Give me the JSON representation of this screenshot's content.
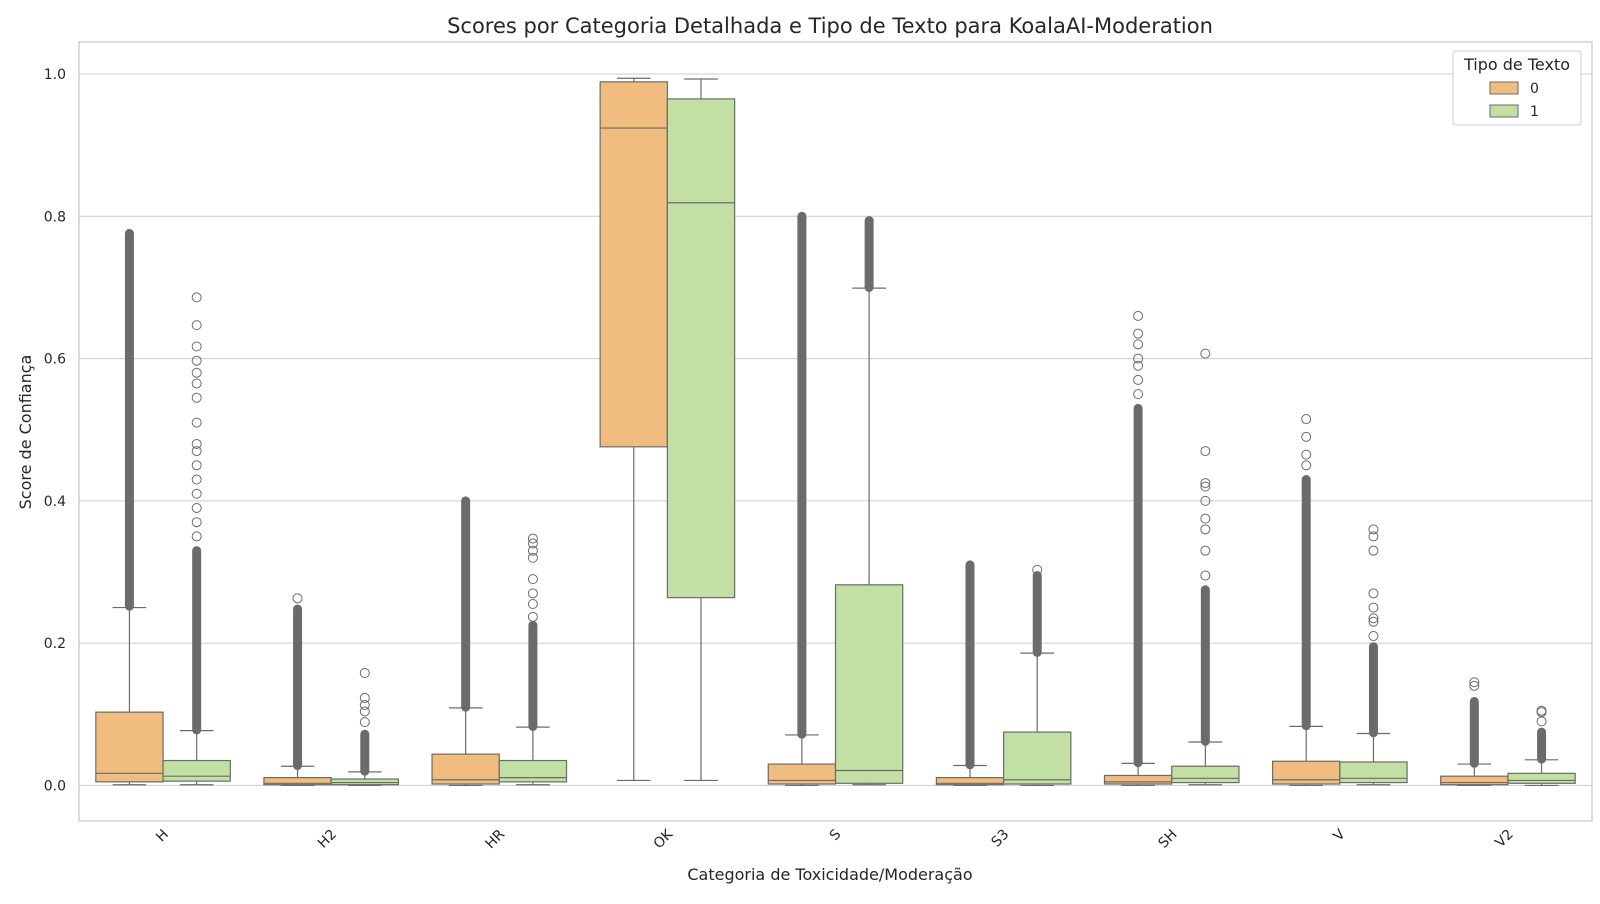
{
  "chart_data": {
    "type": "box",
    "title": "Scores por Categoria Detalhada e Tipo de Texto para KoalaAI-Moderation",
    "xlabel": "Categoria de Toxicidade/Moderação",
    "ylabel": "Score de Confiança",
    "ylim": [
      -0.05,
      1.045
    ],
    "yticks": [
      "0.0",
      "0.2",
      "0.4",
      "0.6",
      "0.8",
      "1.0"
    ],
    "grid": true,
    "categories": [
      "H",
      "H2",
      "HR",
      "OK",
      "S",
      "S3",
      "SH",
      "V",
      "V2"
    ],
    "legend": {
      "title": "Tipo de Texto",
      "position": "top-right"
    },
    "series": [
      {
        "name": "0",
        "color": "#f0bd7e",
        "boxes": [
          {
            "whisker_low": 0.001,
            "q1": 0.005,
            "median": 0.017,
            "q3": 0.103,
            "whisker_high": 0.25,
            "outliers_dense": [
              0.252,
              0.776
            ],
            "outliers": []
          },
          {
            "whisker_low": 0.0,
            "q1": 0.001,
            "median": 0.003,
            "q3": 0.011,
            "whisker_high": 0.027,
            "outliers_dense": [
              0.028,
              0.248
            ],
            "outliers": [
              0.263
            ]
          },
          {
            "whisker_low": 0.0,
            "q1": 0.002,
            "median": 0.008,
            "q3": 0.044,
            "whisker_high": 0.109,
            "outliers_dense": [
              0.11,
              0.4
            ],
            "outliers": []
          },
          {
            "whisker_low": 0.007,
            "q1": 0.476,
            "median": 0.924,
            "q3": 0.989,
            "whisker_high": 0.994,
            "outliers_dense": [],
            "outliers": []
          },
          {
            "whisker_low": 0.0,
            "q1": 0.002,
            "median": 0.007,
            "q3": 0.03,
            "whisker_high": 0.071,
            "outliers_dense": [
              0.072,
              0.8
            ],
            "outliers": []
          },
          {
            "whisker_low": 0.0,
            "q1": 0.001,
            "median": 0.003,
            "q3": 0.011,
            "whisker_high": 0.028,
            "outliers_dense": [
              0.029,
              0.31
            ],
            "outliers": []
          },
          {
            "whisker_low": 0.0,
            "q1": 0.002,
            "median": 0.005,
            "q3": 0.014,
            "whisker_high": 0.031,
            "outliers_dense": [
              0.032,
              0.53
            ],
            "outliers": [
              0.55,
              0.57,
              0.59,
              0.6,
              0.62,
              0.635,
              0.66
            ]
          },
          {
            "whisker_low": 0.0,
            "q1": 0.002,
            "median": 0.008,
            "q3": 0.034,
            "whisker_high": 0.083,
            "outliers_dense": [
              0.084,
              0.43
            ],
            "outliers": [
              0.45,
              0.465,
              0.49,
              0.515
            ]
          },
          {
            "whisker_low": 0.0,
            "q1": 0.001,
            "median": 0.004,
            "q3": 0.013,
            "whisker_high": 0.03,
            "outliers_dense": [
              0.031,
              0.118
            ],
            "outliers": [
              0.14,
              0.145
            ]
          }
        ]
      },
      {
        "name": "1",
        "color": "#c2dfa4",
        "boxes": [
          {
            "whisker_low": 0.001,
            "q1": 0.006,
            "median": 0.013,
            "q3": 0.035,
            "whisker_high": 0.077,
            "outliers_dense": [
              0.078,
              0.33
            ],
            "outliers": [
              0.35,
              0.37,
              0.39,
              0.41,
              0.43,
              0.45,
              0.47,
              0.48,
              0.51,
              0.545,
              0.565,
              0.58,
              0.597,
              0.617,
              0.647,
              0.686
            ]
          },
          {
            "whisker_low": 0.0,
            "q1": 0.001,
            "median": 0.004,
            "q3": 0.009,
            "whisker_high": 0.019,
            "outliers_dense": [
              0.02,
              0.072
            ],
            "outliers": [
              0.089,
              0.104,
              0.113,
              0.123,
              0.158
            ]
          },
          {
            "whisker_low": 0.001,
            "q1": 0.005,
            "median": 0.011,
            "q3": 0.035,
            "whisker_high": 0.082,
            "outliers_dense": [
              0.083,
              0.225
            ],
            "outliers": [
              0.237,
              0.255,
              0.27,
              0.29,
              0.32,
              0.33,
              0.34,
              0.347
            ]
          },
          {
            "whisker_low": 0.007,
            "q1": 0.264,
            "median": 0.819,
            "q3": 0.965,
            "whisker_high": 0.993,
            "outliers_dense": [],
            "outliers": []
          },
          {
            "whisker_low": 0.001,
            "q1": 0.003,
            "median": 0.021,
            "q3": 0.282,
            "whisker_high": 0.699,
            "outliers_dense": [
              0.7,
              0.794
            ],
            "outliers": []
          },
          {
            "whisker_low": 0.0,
            "q1": 0.002,
            "median": 0.008,
            "q3": 0.075,
            "whisker_high": 0.186,
            "outliers_dense": [
              0.187,
              0.295
            ],
            "outliers": [
              0.303
            ]
          },
          {
            "whisker_low": 0.001,
            "q1": 0.004,
            "median": 0.01,
            "q3": 0.027,
            "whisker_high": 0.061,
            "outliers_dense": [
              0.062,
              0.275
            ],
            "outliers": [
              0.295,
              0.33,
              0.36,
              0.375,
              0.4,
              0.42,
              0.425,
              0.47,
              0.607
            ]
          },
          {
            "whisker_low": 0.001,
            "q1": 0.004,
            "median": 0.01,
            "q3": 0.033,
            "whisker_high": 0.073,
            "outliers_dense": [
              0.074,
              0.195
            ],
            "outliers": [
              0.21,
              0.23,
              0.235,
              0.25,
              0.27,
              0.33,
              0.35,
              0.36
            ]
          },
          {
            "whisker_low": 0.0,
            "q1": 0.003,
            "median": 0.007,
            "q3": 0.017,
            "whisker_high": 0.036,
            "outliers_dense": [
              0.037,
              0.075
            ],
            "outliers": [
              0.09,
              0.103,
              0.105
            ]
          }
        ]
      }
    ]
  }
}
